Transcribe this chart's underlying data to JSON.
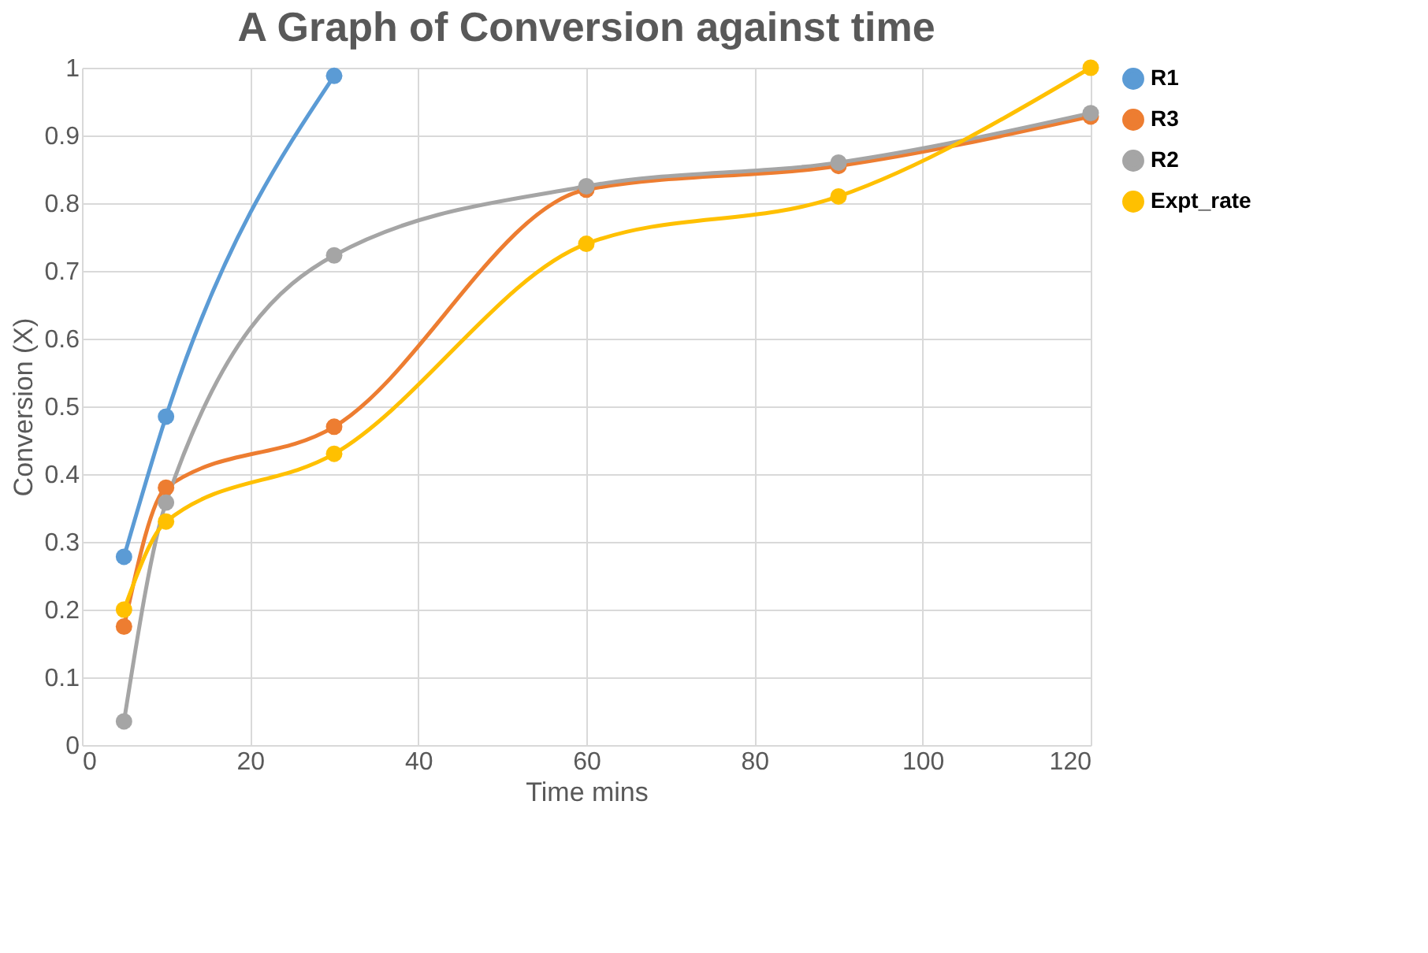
{
  "chart_data": {
    "type": "line",
    "title": "A Graph of Conversion against time",
    "xlabel": "Time mins",
    "ylabel": "Conversion (X)",
    "x": [
      5,
      10,
      30,
      60,
      90,
      120
    ],
    "series": [
      {
        "name": "R1",
        "color": "#5b9bd5",
        "x": [
          5,
          10,
          30
        ],
        "values": [
          0.278,
          0.485,
          0.988
        ]
      },
      {
        "name": "R3",
        "color": "#ed7d31",
        "values": [
          0.175,
          0.38,
          0.47,
          0.82,
          0.855,
          0.928
        ]
      },
      {
        "name": "R2",
        "color": "#a5a5a5",
        "values": [
          0.035,
          0.358,
          0.723,
          0.825,
          0.86,
          0.933
        ]
      },
      {
        "name": "Expt_rate",
        "color": "#ffc000",
        "values": [
          0.2,
          0.33,
          0.43,
          0.74,
          0.81,
          1.0
        ]
      }
    ],
    "xlim": [
      0,
      120
    ],
    "xticks": [
      0,
      20,
      40,
      60,
      80,
      100,
      120
    ],
    "ylim": [
      0,
      1
    ],
    "yticks": [
      0,
      0.1,
      0.2,
      0.3,
      0.4,
      0.5,
      0.6,
      0.7,
      0.8,
      0.9,
      1
    ],
    "grid": true,
    "legend": "right",
    "marker": "circle",
    "line_style": "solid"
  }
}
